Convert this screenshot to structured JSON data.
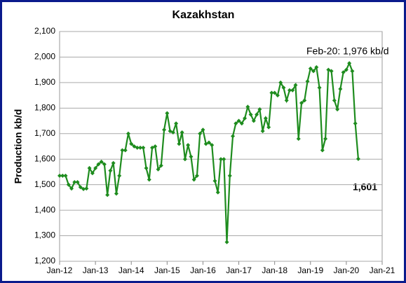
{
  "chart_data": {
    "type": "line",
    "title": "Kazakhstan",
    "y_label": "Production kb/d",
    "x": [
      "2012-01",
      "2012-02",
      "2012-03",
      "2012-04",
      "2012-05",
      "2012-06",
      "2012-07",
      "2012-08",
      "2012-09",
      "2012-10",
      "2012-11",
      "2012-12",
      "2013-01",
      "2013-02",
      "2013-03",
      "2013-04",
      "2013-05",
      "2013-06",
      "2013-07",
      "2013-08",
      "2013-09",
      "2013-10",
      "2013-11",
      "2013-12",
      "2014-01",
      "2014-02",
      "2014-03",
      "2014-04",
      "2014-05",
      "2014-06",
      "2014-07",
      "2014-08",
      "2014-09",
      "2014-10",
      "2014-11",
      "2014-12",
      "2015-01",
      "2015-02",
      "2015-03",
      "2015-04",
      "2015-05",
      "2015-06",
      "2015-07",
      "2015-08",
      "2015-09",
      "2015-10",
      "2015-11",
      "2015-12",
      "2016-01",
      "2016-02",
      "2016-03",
      "2016-04",
      "2016-05",
      "2016-06",
      "2016-07",
      "2016-08",
      "2016-09",
      "2016-10",
      "2016-11",
      "2016-12",
      "2017-01",
      "2017-02",
      "2017-03",
      "2017-04",
      "2017-05",
      "2017-06",
      "2017-07",
      "2017-08",
      "2017-09",
      "2017-10",
      "2017-11",
      "2017-12",
      "2018-01",
      "2018-02",
      "2018-03",
      "2018-04",
      "2018-05",
      "2018-06",
      "2018-07",
      "2018-08",
      "2018-09",
      "2018-10",
      "2018-11",
      "2018-12",
      "2019-01",
      "2019-02",
      "2019-03",
      "2019-04",
      "2019-05",
      "2019-06",
      "2019-07",
      "2019-08",
      "2019-09",
      "2019-10",
      "2019-11",
      "2019-12",
      "2020-01",
      "2020-02",
      "2020-03",
      "2020-04",
      "2020-05"
    ],
    "series": [
      {
        "name": "Production",
        "color": "#1e8c1e",
        "values": [
          1535,
          1535,
          1535,
          1500,
          1485,
          1510,
          1510,
          1490,
          1483,
          1485,
          1565,
          1545,
          1565,
          1580,
          1590,
          1580,
          1460,
          1555,
          1585,
          1465,
          1535,
          1635,
          1635,
          1700,
          1660,
          1650,
          1645,
          1645,
          1645,
          1565,
          1520,
          1645,
          1650,
          1560,
          1575,
          1715,
          1780,
          1710,
          1705,
          1740,
          1660,
          1705,
          1600,
          1655,
          1610,
          1520,
          1535,
          1700,
          1715,
          1660,
          1665,
          1655,
          1515,
          1470,
          1600,
          1600,
          1275,
          1535,
          1690,
          1740,
          1750,
          1740,
          1760,
          1805,
          1775,
          1750,
          1775,
          1795,
          1710,
          1760,
          1725,
          1860,
          1860,
          1850,
          1900,
          1880,
          1830,
          1870,
          1870,
          1890,
          1680,
          1820,
          1830,
          1905,
          1955,
          1945,
          1960,
          1880,
          1635,
          1680,
          1950,
          1945,
          1830,
          1795,
          1875,
          1940,
          1950,
          1976,
          1945,
          1740,
          1601
        ]
      }
    ],
    "xlim": [
      "2012-01",
      "2021-01"
    ],
    "xticks": [
      {
        "value": "2012-01",
        "label": "Jan-12"
      },
      {
        "value": "2013-01",
        "label": "Jan-13"
      },
      {
        "value": "2014-01",
        "label": "Jan-14"
      },
      {
        "value": "2015-01",
        "label": "Jan-15"
      },
      {
        "value": "2016-01",
        "label": "Jan-16"
      },
      {
        "value": "2017-01",
        "label": "Jan-17"
      },
      {
        "value": "2018-01",
        "label": "Jan-18"
      },
      {
        "value": "2019-01",
        "label": "Jan-19"
      },
      {
        "value": "2020-01",
        "label": "Jan-20"
      },
      {
        "value": "2021-01",
        "label": "Jan-21"
      }
    ],
    "ylim": [
      1200,
      2100
    ],
    "yticks": [
      {
        "value": 1200,
        "label": "1,200"
      },
      {
        "value": 1300,
        "label": "1,300"
      },
      {
        "value": 1400,
        "label": "1,400"
      },
      {
        "value": 1500,
        "label": "1,500"
      },
      {
        "value": 1600,
        "label": "1,600"
      },
      {
        "value": 1700,
        "label": "1,700"
      },
      {
        "value": 1800,
        "label": "1,800"
      },
      {
        "value": 1900,
        "label": "1,900"
      },
      {
        "value": 2000,
        "label": "2,000"
      },
      {
        "value": 2100,
        "label": "2,100"
      }
    ],
    "grid": true,
    "annotations": [
      "Feb-20: 1,976 kb/d",
      "1,601"
    ]
  }
}
